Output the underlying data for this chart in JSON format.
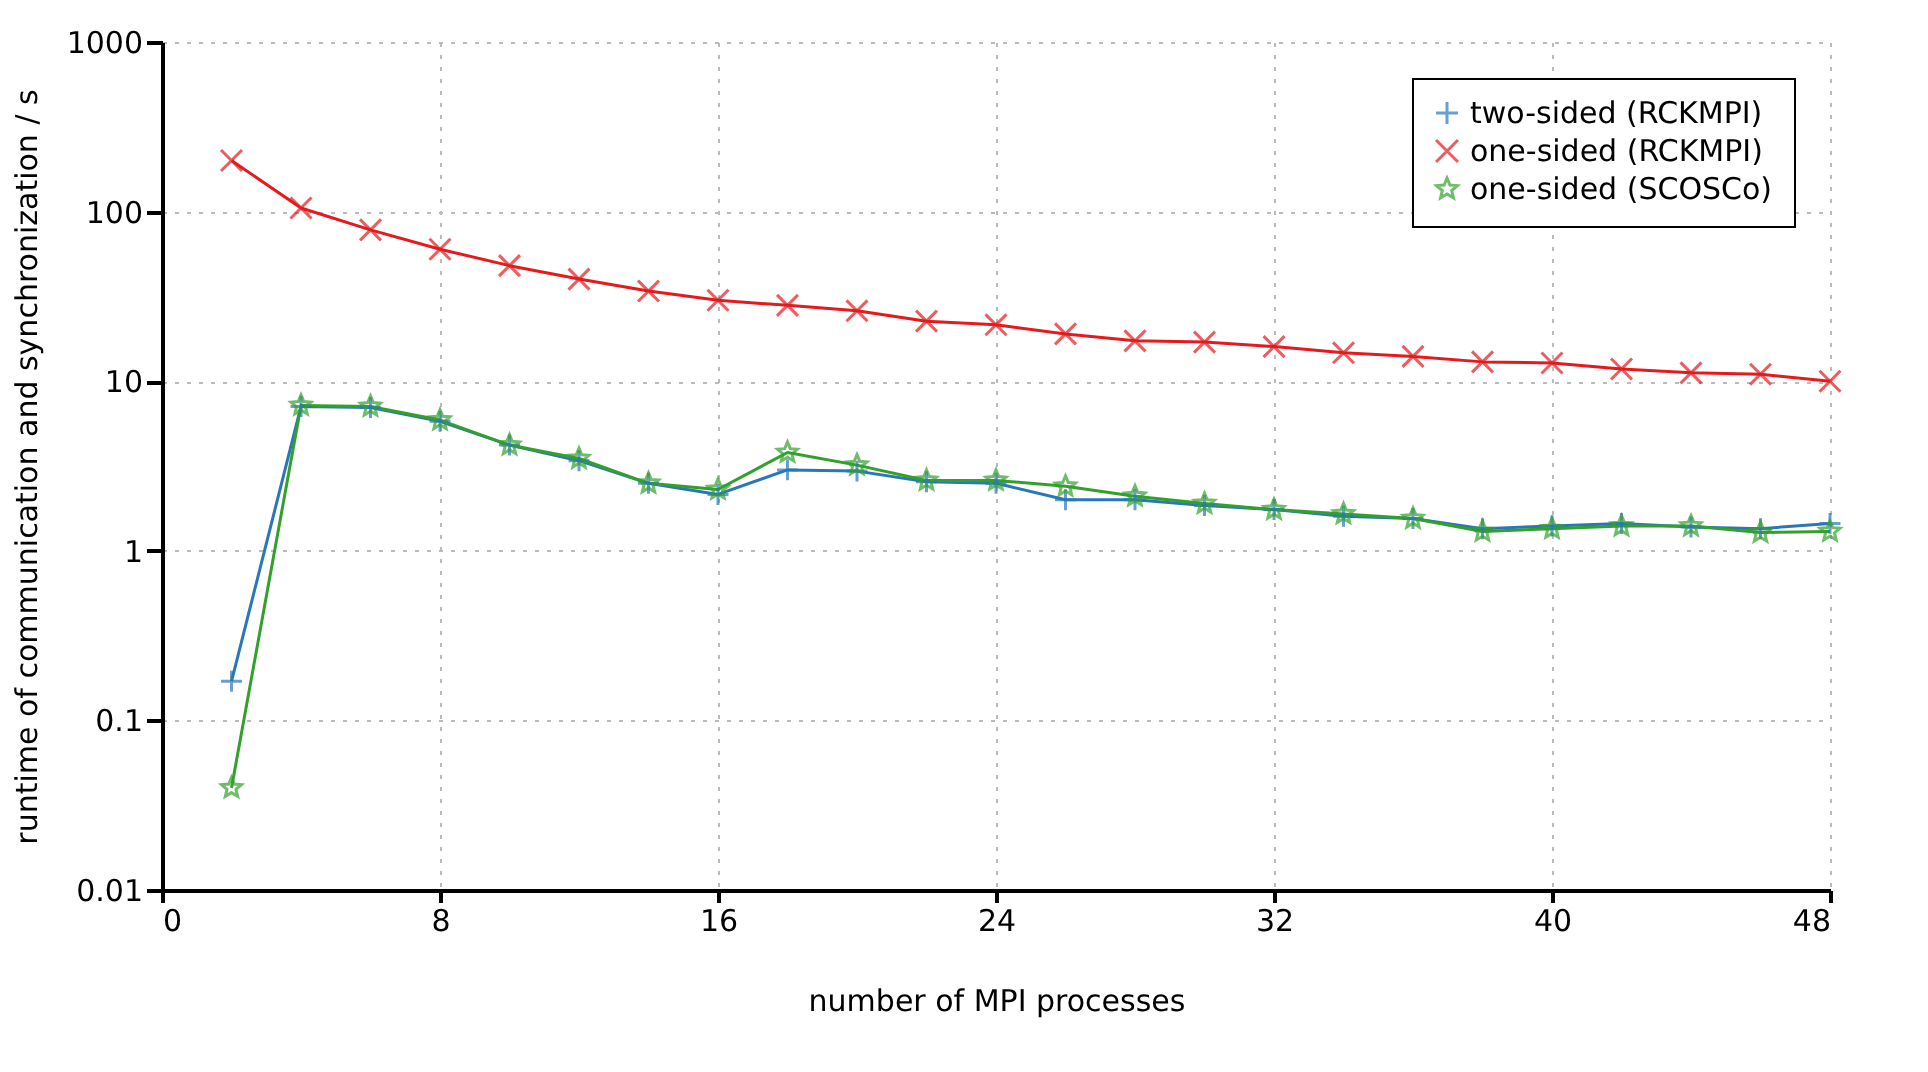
{
  "chart_data": {
    "type": "line",
    "xlabel": "number of MPI processes",
    "ylabel": "runtime of communication and synchronization / s",
    "x": [
      2,
      4,
      6,
      8,
      10,
      12,
      14,
      16,
      18,
      20,
      22,
      24,
      26,
      28,
      30,
      32,
      34,
      36,
      38,
      40,
      42,
      44,
      46,
      48
    ],
    "series": [
      {
        "name": "two-sided (RCKMPI)",
        "color": "#2878b8",
        "marker": "plus",
        "values": [
          0.17,
          7.1,
          7,
          5.8,
          4.2,
          3.4,
          2.5,
          2.15,
          3.0,
          2.95,
          2.55,
          2.5,
          2.0,
          2.0,
          1.85,
          1.75,
          1.6,
          1.55,
          1.35,
          1.4,
          1.45,
          1.38,
          1.35,
          1.45
        ]
      },
      {
        "name": "one-sided (RCKMPI)",
        "color": "#e41a1c",
        "marker": "cross",
        "values": [
          200,
          105,
          78,
          60,
          48,
          40,
          34,
          30,
          28,
          26,
          22.6,
          21.5,
          19,
          17.3,
          17,
          16,
          14.7,
          14,
          13,
          12.8,
          11.8,
          11.2,
          11,
          10
        ]
      },
      {
        "name": "one-sided (SCOSCo)",
        "color": "#33a02c",
        "marker": "star",
        "values": [
          0.04,
          7.2,
          7.1,
          5.9,
          4.2,
          3.5,
          2.5,
          2.3,
          3.8,
          3.2,
          2.6,
          2.6,
          2.4,
          2.1,
          1.9,
          1.75,
          1.65,
          1.55,
          1.3,
          1.35,
          1.4,
          1.4,
          1.28,
          1.3
        ]
      }
    ],
    "xlim": [
      0,
      48
    ],
    "xticks": [
      0,
      8,
      16,
      24,
      32,
      40,
      48
    ],
    "ylim": [
      0.01,
      1000
    ],
    "yticks": [
      0.01,
      0.1,
      1,
      10,
      100,
      1000
    ],
    "log": "y",
    "grid": true,
    "legend": "top right",
    "line_style": "solid"
  }
}
